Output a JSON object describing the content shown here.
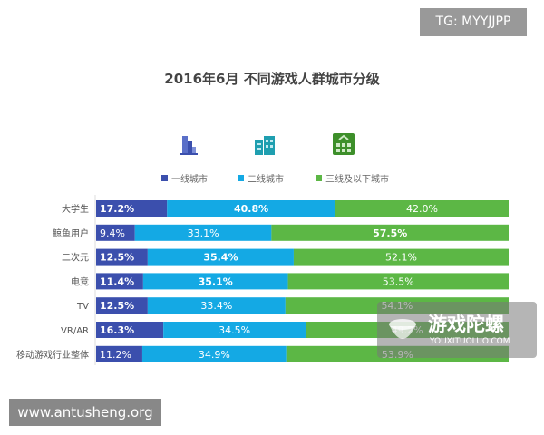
{
  "watermark_tg": "TG: MYYJJPP",
  "watermark_site": "www.antusheng.org",
  "watermark_logo": {
    "name": "游戏陀螺",
    "sub": "YOUXITUOLUO.COM"
  },
  "chart_data": {
    "type": "bar",
    "orientation": "horizontal",
    "stacked": true,
    "normalized": true,
    "title": "2016年6月 不同游戏人群城市分级",
    "categories": [
      "大学生",
      "鲸鱼用户",
      "二次元",
      "电竞",
      "TV",
      "VR/AR",
      "移动游戏行业整体"
    ],
    "series": [
      {
        "name": "一线城市",
        "color": "#3b4fad",
        "icon": "skyscraper-icon",
        "values": [
          17.2,
          9.4,
          12.5,
          11.4,
          12.5,
          16.3,
          11.2
        ],
        "bold": [
          true,
          false,
          true,
          true,
          true,
          true,
          false
        ]
      },
      {
        "name": "二线城市",
        "color": "#14a9e4",
        "icon": "office-building-icon",
        "values": [
          40.8,
          33.1,
          35.4,
          35.1,
          33.4,
          34.5,
          34.9
        ],
        "bold": [
          true,
          false,
          true,
          true,
          false,
          false,
          false
        ]
      },
      {
        "name": "三线及以下城市",
        "color": "#5cb745",
        "icon": "house-icon",
        "values": [
          42.0,
          57.5,
          52.1,
          53.5,
          54.1,
          49.2,
          53.9
        ],
        "bold": [
          false,
          true,
          false,
          false,
          false,
          false,
          false
        ]
      }
    ],
    "xlim": [
      0,
      100
    ],
    "legend": "top",
    "grid": false
  }
}
